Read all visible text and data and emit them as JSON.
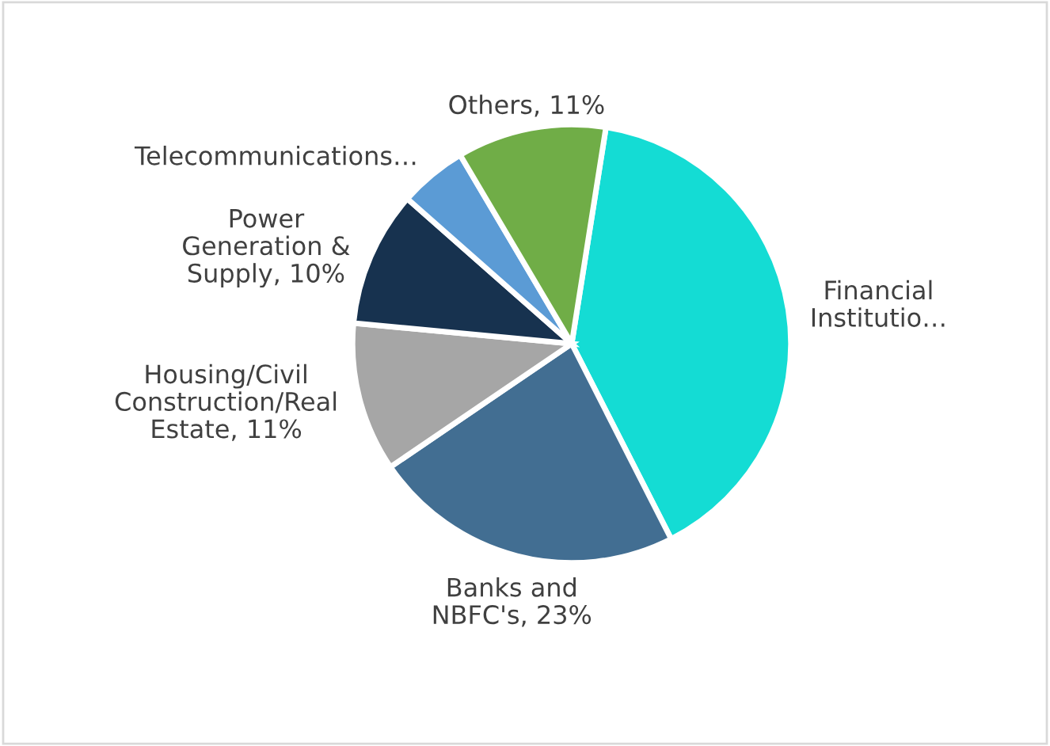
{
  "chart_data": {
    "type": "pie",
    "categories": [
      "Financial\nInstitutio…",
      "Banks and\nNBFC's, 23%",
      "Housing/Civil\nConstruction/Real\nEstate, 11%",
      "Power\nGeneration &\nSupply, 10%",
      "Telecommunications…",
      "Others, 11%"
    ],
    "values": [
      40,
      23,
      11,
      10,
      5,
      11
    ],
    "colors": [
      "#14dcd4",
      "#426e92",
      "#a6a6a6",
      "#17324f",
      "#5b9bd5",
      "#70ad47"
    ]
  }
}
